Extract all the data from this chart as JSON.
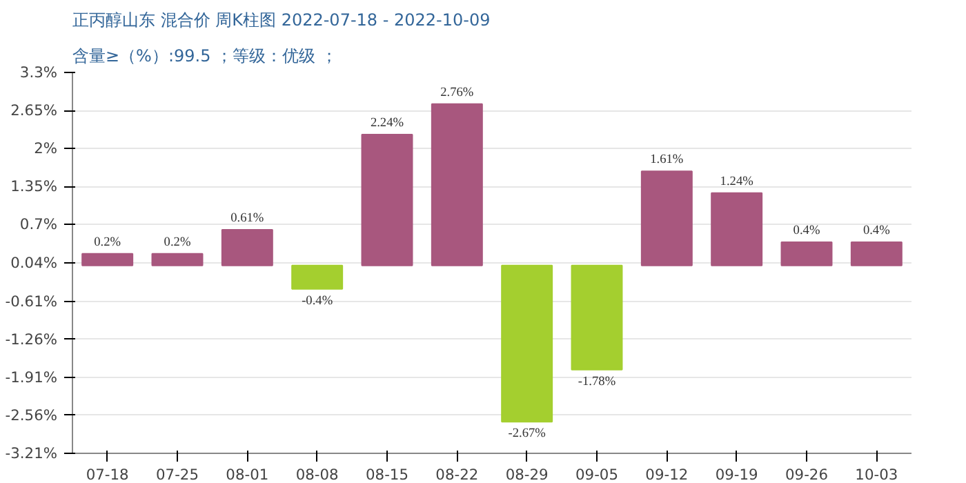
{
  "chart_data": {
    "type": "bar",
    "title": "正丙醇山东 混合价 周K柱图 2022-07-18 - 2022-10-09",
    "subtitle": "含量≥（%）:99.5 ；等级：优级 ；",
    "categories": [
      "07-18",
      "07-25",
      "08-01",
      "08-08",
      "08-15",
      "08-22",
      "08-29",
      "09-05",
      "09-12",
      "09-19",
      "09-26",
      "10-03"
    ],
    "values": [
      0.2,
      0.2,
      0.61,
      -0.4,
      2.24,
      2.76,
      -2.67,
      -1.78,
      1.61,
      1.24,
      0.4,
      0.4
    ],
    "colors": [
      "#a8577e",
      "#a8577e",
      "#a8577e",
      "#a4cf2f",
      "#a8577e",
      "#a8577e",
      "#a4cf2f",
      "#a4cf2f",
      "#a8577e",
      "#a8577e",
      "#a8577e",
      "#a8577e"
    ],
    "value_labels": [
      "0.2%",
      "0.2%",
      "0.61%",
      "-0.4%",
      "2.24%",
      "2.76%",
      "-2.67%",
      "-1.78%",
      "1.61%",
      "1.24%",
      "0.4%",
      "0.4%"
    ],
    "ylim": [
      -3.21,
      3.3
    ],
    "yticks": [
      {
        "value": 3.3,
        "label": "3.3%"
      },
      {
        "value": 2.65,
        "label": "2.65%"
      },
      {
        "value": 2,
        "label": "2%"
      },
      {
        "value": 1.35,
        "label": "1.35%"
      },
      {
        "value": 0.7,
        "label": "0.7%"
      },
      {
        "value": 0.04,
        "label": "0.04%"
      },
      {
        "value": -0.61,
        "label": "-0.61%"
      },
      {
        "value": -1.26,
        "label": "-1.26%"
      },
      {
        "value": -1.91,
        "label": "-1.91%"
      },
      {
        "value": -2.56,
        "label": "-2.56%"
      },
      {
        "value": -3.21,
        "label": "-3.21%"
      }
    ],
    "grid": "y"
  }
}
